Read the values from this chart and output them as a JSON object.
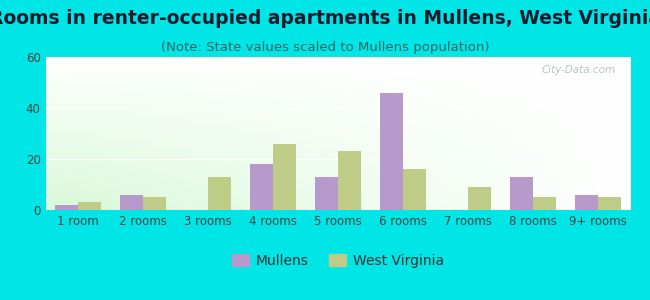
{
  "title": "Rooms in renter-occupied apartments in Mullens, West Virginia",
  "subtitle": "(Note: State values scaled to Mullens population)",
  "categories": [
    "1 room",
    "2 rooms",
    "3 rooms",
    "4 rooms",
    "5 rooms",
    "6 rooms",
    "7 rooms",
    "8 rooms",
    "9+ rooms"
  ],
  "mullens_values": [
    2,
    6,
    0,
    18,
    13,
    46,
    0,
    13,
    6
  ],
  "wv_values": [
    3,
    5,
    13,
    26,
    23,
    16,
    9,
    5,
    5
  ],
  "mullens_color": "#b899cc",
  "wv_color": "#bfcc88",
  "ylim": [
    0,
    60
  ],
  "yticks": [
    0,
    20,
    40,
    60
  ],
  "bar_width": 0.35,
  "bg_color": "#00e5e5",
  "title_fontsize": 13.5,
  "subtitle_fontsize": 9.5,
  "tick_fontsize": 8.5,
  "legend_fontsize": 10,
  "title_color": "#1a1a2e",
  "subtitle_color": "#336666",
  "tick_color": "#444444"
}
